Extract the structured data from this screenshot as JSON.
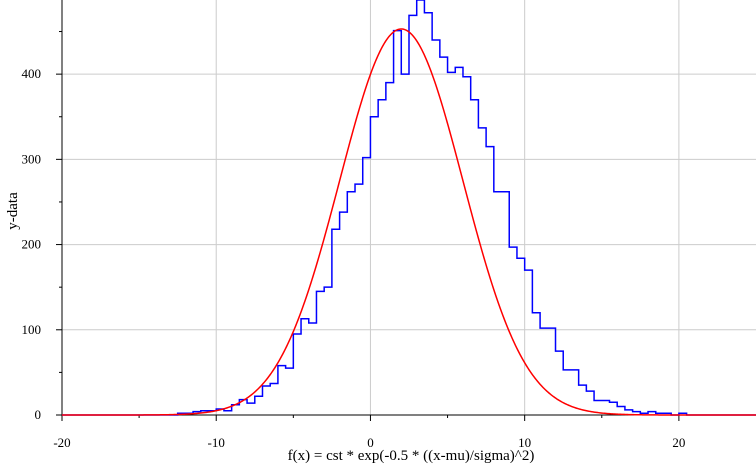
{
  "chart_data": {
    "type": "line",
    "title": "",
    "xlabel": "f(x) = cst * exp(-0.5 * ((x-mu)/sigma)^2)",
    "ylabel": "y-data",
    "xlim": [
      -20,
      25
    ],
    "ylim": [
      0,
      487
    ],
    "x_ticks": [
      -20,
      -10,
      0,
      10,
      20
    ],
    "x_tick_labels": [
      "-20",
      "-10",
      "0",
      "10",
      "20"
    ],
    "y_ticks": [
      0,
      100,
      200,
      300,
      400
    ],
    "y_tick_labels": [
      "0",
      "100",
      "200",
      "300",
      "400"
    ],
    "grid": true,
    "series": [
      {
        "kind": "histogram-step",
        "color": "#0000ff",
        "bin_width": 0.5,
        "bin_edges_start": -12.5,
        "values": [
          2,
          2,
          4,
          5,
          5,
          7,
          5,
          12,
          18,
          14,
          22,
          34,
          37,
          58,
          55,
          95,
          113,
          108,
          145,
          150,
          218,
          238,
          262,
          271,
          302,
          350,
          370,
          390,
          451,
          400,
          469,
          487,
          472,
          440,
          420,
          402,
          408,
          397,
          370,
          337,
          315,
          262,
          262,
          197,
          184,
          170,
          120,
          102,
          102,
          75,
          53,
          53,
          35,
          28,
          17,
          17,
          15,
          10,
          6,
          4,
          2,
          4,
          2,
          2,
          0,
          2
        ]
      },
      {
        "kind": "gaussian-fit",
        "color": "#ff0000",
        "cst": 453,
        "mu": 2.0,
        "sigma": 4.0
      }
    ]
  }
}
